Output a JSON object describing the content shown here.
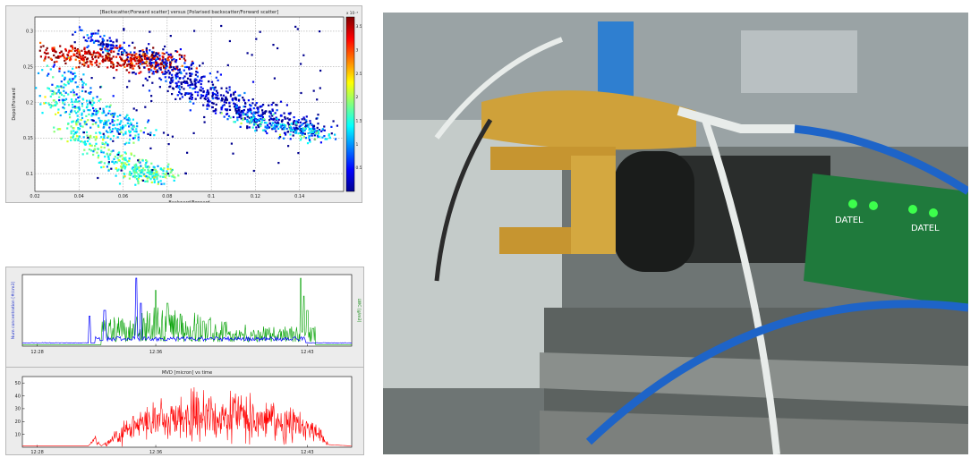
{
  "chart_data": [
    {
      "type": "scatter",
      "title": "[Backscatter/Forward scatter] versus [Polarised backscatter/Forward scatter]",
      "xlabel": "Backward/Forward",
      "ylabel": "Depol/Forward",
      "xlim": [
        0.02,
        0.16
      ],
      "ylim": [
        0.075,
        0.32
      ],
      "xticks": [
        0.02,
        0.04,
        0.06,
        0.08,
        0.1,
        0.12,
        0.14
      ],
      "xtick_labels": [
        "0.02",
        "0.04",
        "0.06",
        "0.08",
        "0.1",
        "0.12",
        "0.14"
      ],
      "yticks": [
        0.1,
        0.15,
        0.2,
        0.25,
        0.3
      ],
      "ytick_labels": [
        "0.1",
        "0.15",
        "0.2",
        "0.25",
        "0.3"
      ],
      "grid": true,
      "colorbar": {
        "exponent_label": "x 10⁻³",
        "ticks": [
          0.5,
          1,
          1.5,
          2,
          2.5,
          3,
          3.5
        ],
        "tick_labels": [
          "0.5",
          "1",
          "1.5",
          "2",
          "2.5",
          "3",
          "3.5"
        ],
        "range": [
          0,
          3.7
        ],
        "colors": [
          "#00008f",
          "#0000ff",
          "#0080ff",
          "#00ffff",
          "#80ff80",
          "#ffff00",
          "#ff8000",
          "#ff0000",
          "#800000"
        ]
      },
      "clusters": [
        {
          "x": [
            0.028,
            0.04,
            0.055,
            0.07,
            0.075
          ],
          "y": [
            0.22,
            0.16,
            0.12,
            0.1,
            0.098
          ],
          "count": 450,
          "spread": 0.006,
          "color_value": 1.6
        },
        {
          "x": [
            0.03,
            0.042,
            0.055,
            0.065
          ],
          "y": [
            0.25,
            0.2,
            0.17,
            0.155
          ],
          "count": 260,
          "spread": 0.006,
          "color_value": 1.1
        },
        {
          "x": [
            0.03,
            0.04,
            0.055,
            0.07,
            0.08
          ],
          "y": [
            0.272,
            0.265,
            0.262,
            0.258,
            0.255
          ],
          "count": 420,
          "spread": 0.007,
          "color_value": 3.4
        },
        {
          "x": [
            0.04,
            0.05,
            0.06
          ],
          "y": [
            0.3,
            0.285,
            0.275
          ],
          "count": 90,
          "spread": 0.005,
          "color_value": 0.5
        },
        {
          "x": [
            0.07,
            0.085,
            0.1,
            0.115,
            0.13,
            0.145
          ],
          "y": [
            0.27,
            0.235,
            0.21,
            0.19,
            0.175,
            0.155
          ],
          "count": 650,
          "spread": 0.008,
          "color_value": 0.25
        },
        {
          "x": [
            0.11,
            0.125,
            0.14,
            0.15
          ],
          "y": [
            0.18,
            0.17,
            0.16,
            0.15
          ],
          "count": 140,
          "spread": 0.005,
          "color_value": 1.3
        }
      ]
    },
    {
      "type": "line",
      "xlim": [
        0,
        100
      ],
      "xticks": [
        4.5,
        40.5,
        86.5
      ],
      "xtick_labels": [
        "12:28",
        "12:36",
        "12:43"
      ],
      "ylabel_left": "Num concentration [#/cm3]",
      "ylabel_right": "LWC [g/m3]",
      "grid": false,
      "series": [
        {
          "color": "#0000ff",
          "samples": 360,
          "baseline": 0.04,
          "spikes": [
            [
              20.5,
              0.42
            ],
            [
              25,
              0.5
            ],
            [
              34.5,
              0.95
            ],
            [
              36,
              0.6
            ]
          ],
          "plateau": [
            22,
            86,
            0.12
          ]
        },
        {
          "color": "#00a000",
          "samples": 520,
          "baseline": 0.02,
          "start": 24,
          "end": 89,
          "spikes": [
            [
              40.5,
              0.78
            ],
            [
              44,
              0.6
            ],
            [
              48,
              0.45
            ],
            [
              55,
              0.35
            ],
            [
              84.5,
              0.95
            ],
            [
              85.5,
              0.7
            ],
            [
              86.5,
              0.5
            ]
          ]
        }
      ]
    },
    {
      "type": "line",
      "title": "MVD [micron] vs time",
      "xlim": [
        0,
        100
      ],
      "ylim": [
        0,
        55
      ],
      "xticks": [
        4.5,
        40.5,
        86.5
      ],
      "xtick_labels": [
        "12:28",
        "12:36",
        "12:43"
      ],
      "yticks": [
        10,
        20,
        30,
        40,
        50
      ],
      "ytick_labels": [
        "10",
        "20",
        "30",
        "40",
        "50"
      ],
      "grid": false,
      "series": [
        {
          "color": "#ff0000",
          "samples": 700,
          "envelope": [
            [
              0,
              1
            ],
            [
              20,
              1
            ],
            [
              22,
              6
            ],
            [
              24,
              1
            ],
            [
              25,
              3
            ],
            [
              40,
              22
            ],
            [
              55,
              26
            ],
            [
              70,
              22
            ],
            [
              88,
              14
            ],
            [
              93,
              2
            ],
            [
              100,
              1
            ]
          ],
          "noise": 10
        }
      ]
    }
  ],
  "photo": {
    "colors": {
      "housing": "#cfa13a",
      "board": "#1f7a3c",
      "led": "#3cff4c",
      "hose": "#1e64c8",
      "frame": "#8a8f8c"
    },
    "labels": [
      "DATEL",
      "DATEL"
    ]
  }
}
